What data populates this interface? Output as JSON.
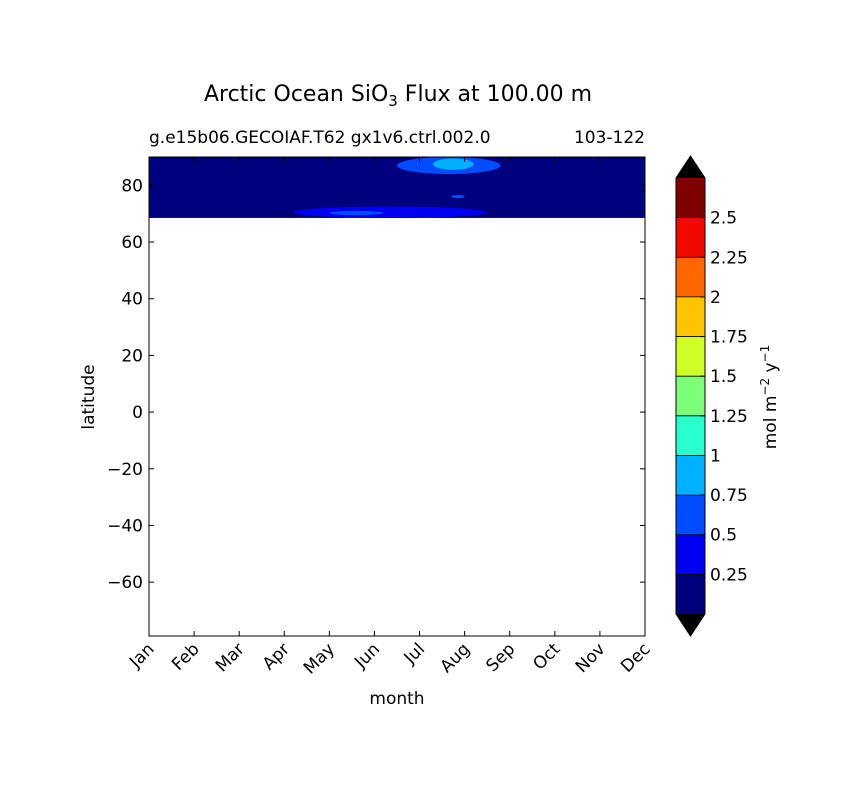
{
  "chart_data": {
    "type": "heatmap",
    "title": {
      "prefix": "Arctic Ocean SiO",
      "subscript": "3",
      "suffix": " Flux at 100.00 m"
    },
    "subtitle_left": "g.e15b06.GECOIAF.T62 gx1v6.ctrl.002.0",
    "subtitle_right": "103-122",
    "xlabel": "month",
    "ylabel": "latitude",
    "x_ticks": [
      "Jan",
      "Feb",
      "Mar",
      "Apr",
      "May",
      "Jun",
      "Jul",
      "Aug",
      "Sep",
      "Oct",
      "Nov",
      "Dec"
    ],
    "y_ticks": [
      -60,
      -40,
      -20,
      0,
      20,
      40,
      60,
      80
    ],
    "xlim": [
      1,
      12
    ],
    "ylim": [
      -79,
      90
    ],
    "data_lat_min": 68.5,
    "background_level_color": "#00007f",
    "patches": [
      {
        "month_range": [
          6.5,
          8.8
        ],
        "lat_range": [
          84,
          90
        ],
        "value": 0.5
      },
      {
        "month_range": [
          7.3,
          8.2
        ],
        "lat_range": [
          85.5,
          89.5
        ],
        "value": 0.75
      },
      {
        "month_range": [
          7.7,
          8.0
        ],
        "lat_range": [
          75.5,
          76.6
        ],
        "value": 0.5
      },
      {
        "month_range": [
          4.2,
          8.5
        ],
        "lat_range": [
          68.5,
          72.5
        ],
        "value": 0.25
      },
      {
        "month_range": [
          5.0,
          6.2
        ],
        "lat_range": [
          69.5,
          71
        ],
        "value": 0.5
      }
    ],
    "colorbar": {
      "label_main": "mol m",
      "label_sup1": "−2",
      "label_mid": " y",
      "label_sup2": "−1",
      "levels": [
        0,
        0.25,
        0.5,
        0.75,
        1,
        1.25,
        1.5,
        1.75,
        2,
        2.25,
        2.5,
        2.75
      ],
      "tick_labels": [
        "0.25",
        "0.5",
        "0.75",
        "1",
        "1.25",
        "1.5",
        "1.75",
        "2",
        "2.25",
        "2.5"
      ],
      "colors": [
        "#00007f",
        "#0000f1",
        "#004dff",
        "#00b1ff",
        "#29ffce",
        "#7dff7a",
        "#ceff29",
        "#ffc400",
        "#ff6800",
        "#f10800",
        "#7f0000"
      ],
      "extend_low_color": "#000000",
      "extend_high_color": "#000000"
    }
  }
}
